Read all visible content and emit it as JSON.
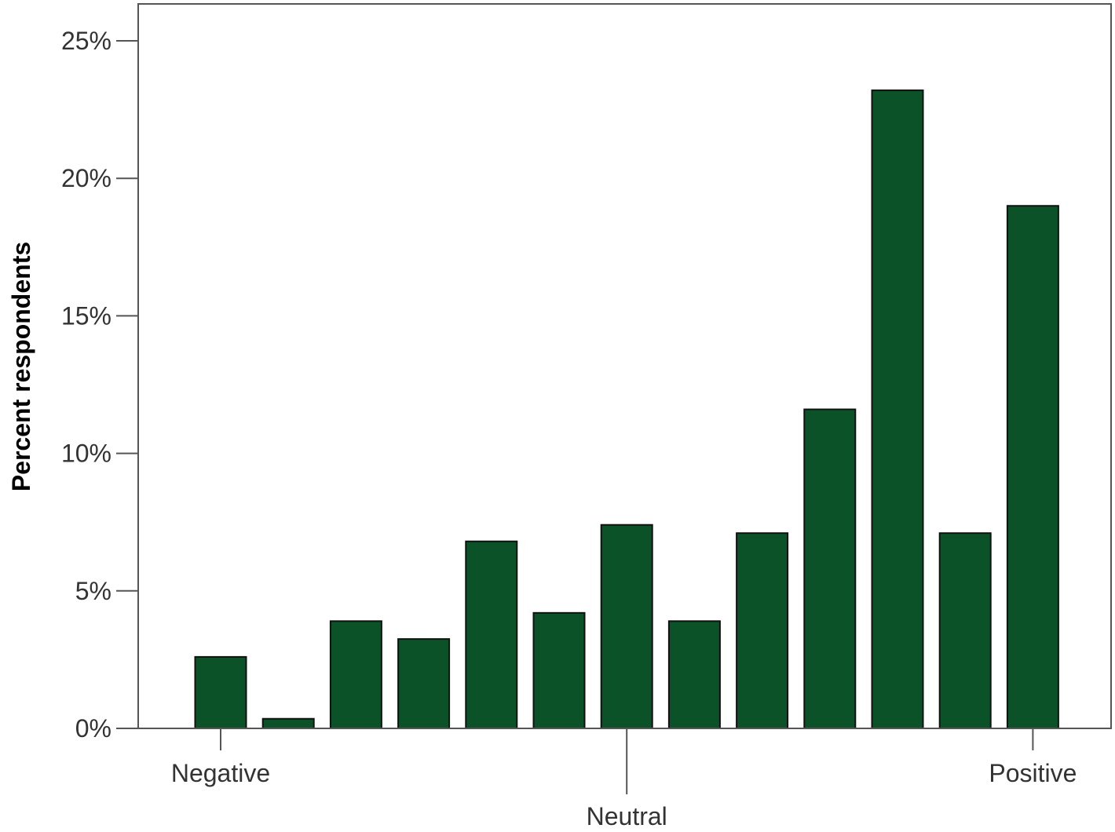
{
  "chart_data": {
    "type": "bar",
    "title": "",
    "xlabel": "",
    "ylabel": "Percent respondents",
    "ylim": [
      0,
      25
    ],
    "yticks": [
      0,
      5,
      10,
      15,
      20,
      25
    ],
    "ytick_labels": [
      "0%",
      "5%",
      "10%",
      "15%",
      "20%",
      "25%"
    ],
    "values": [
      2.6,
      0.35,
      3.9,
      3.25,
      6.8,
      4.2,
      7.4,
      3.9,
      7.1,
      11.6,
      23.2,
      7.1,
      19.0
    ],
    "x_labels": [
      {
        "text": "Negative",
        "bar_index": 0
      },
      {
        "text": "Neutral",
        "bar_index": 6
      },
      {
        "text": "Positive",
        "bar_index": 12
      }
    ],
    "bar_color": "#0b5229",
    "grid": false,
    "legend": "none"
  }
}
